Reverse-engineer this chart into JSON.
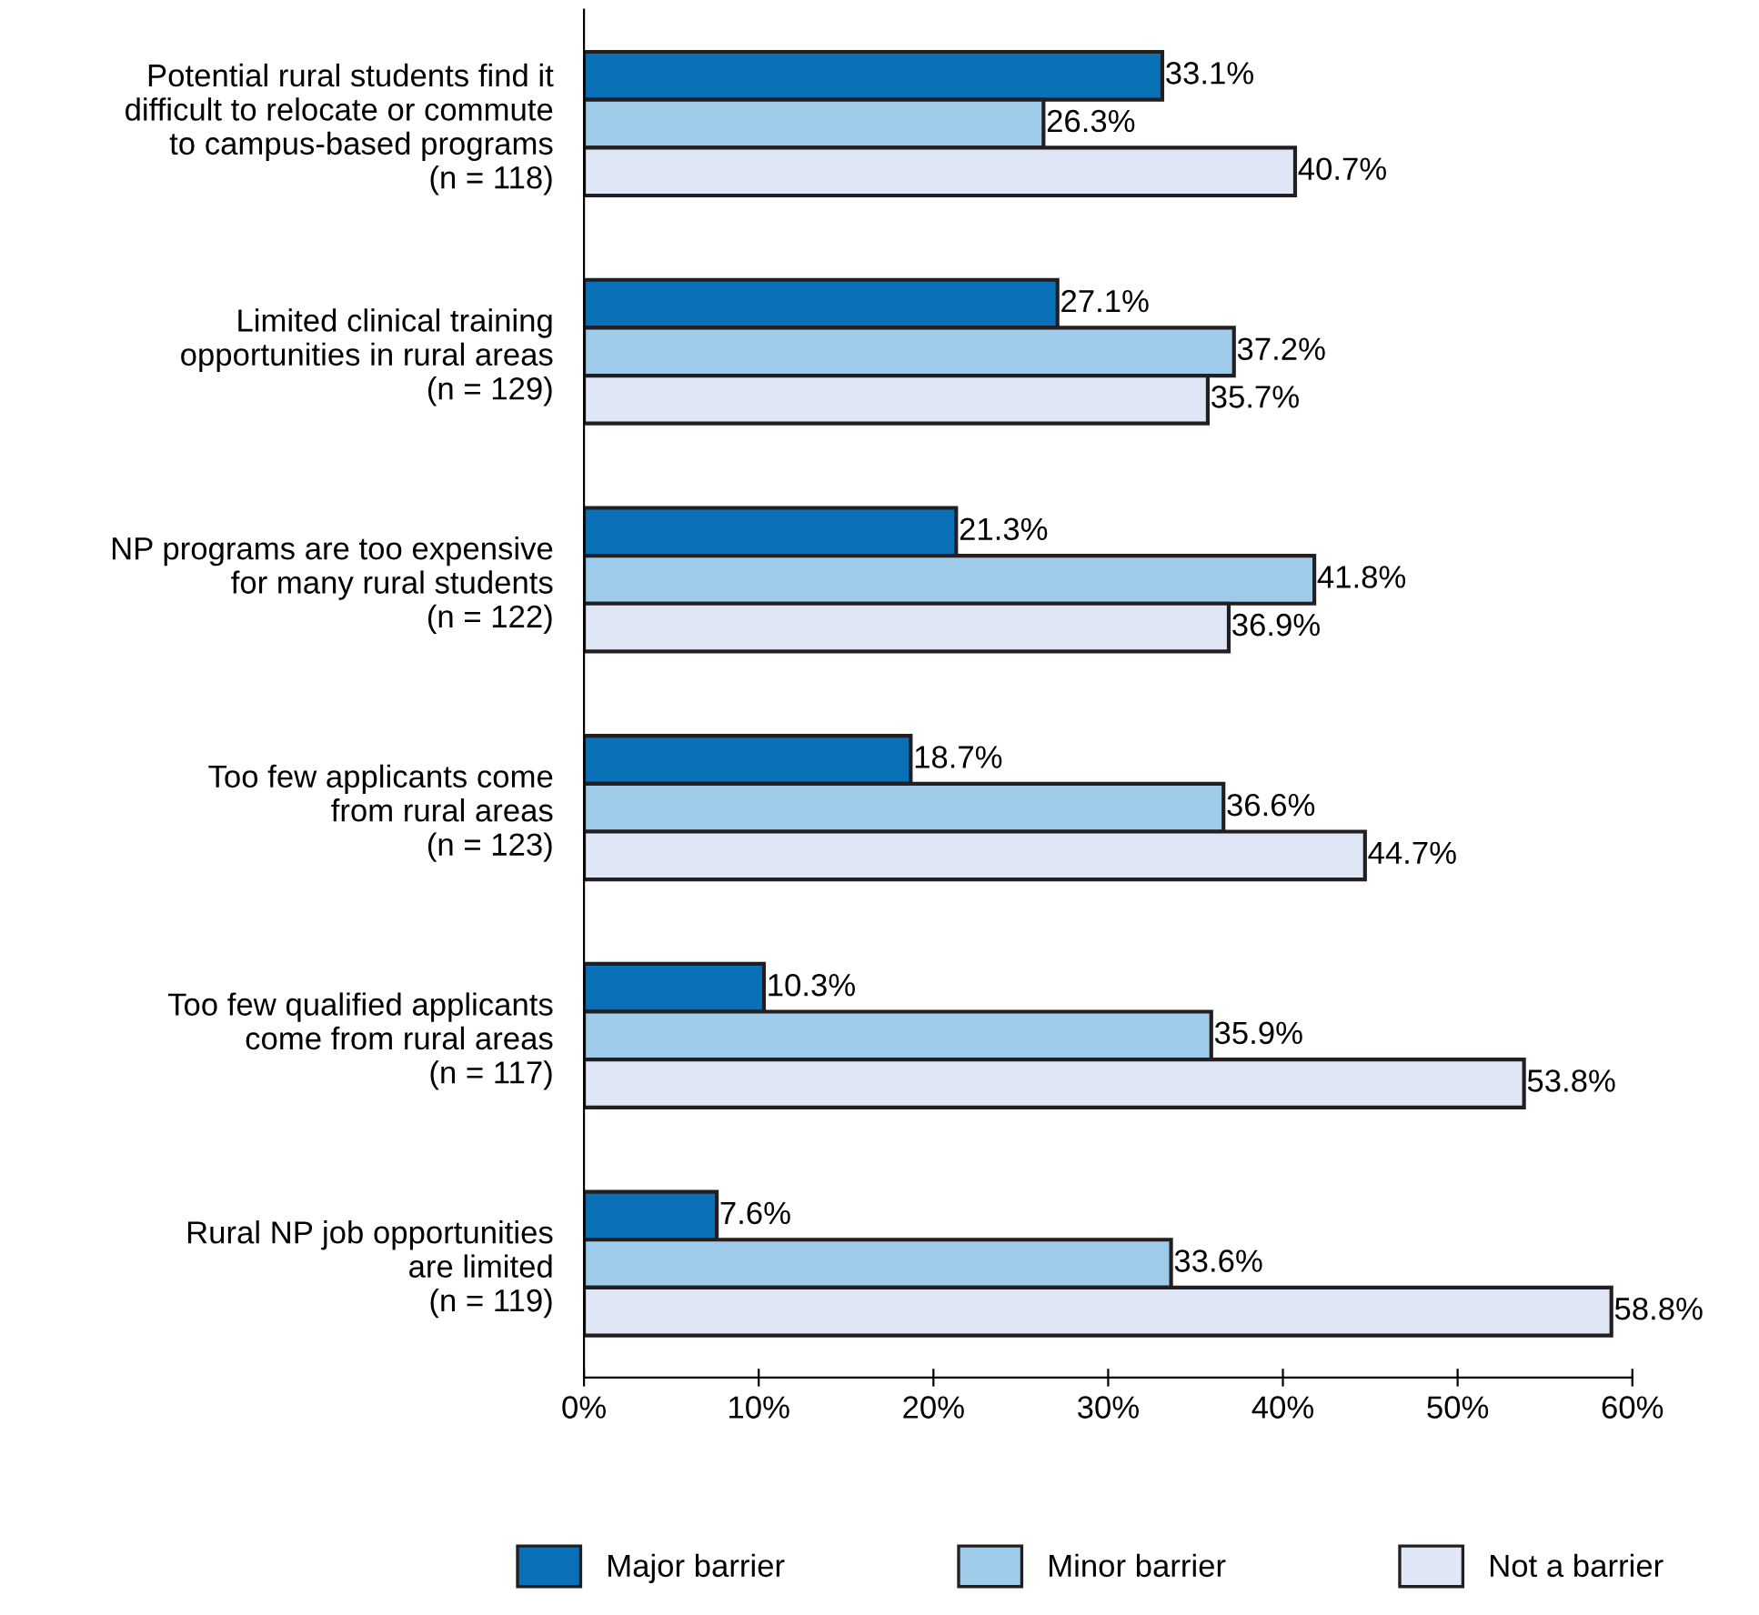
{
  "chart_data": {
    "type": "bar",
    "orientation": "horizontal",
    "categories": [
      "Potential rural students find it\ndifficult to relocate or commute\nto campus-based programs\n(n = 118)",
      "Limited clinical training\nopportunities in rural areas\n(n = 129)",
      "NP programs are too expensive\nfor many rural students\n(n = 122)",
      "Too few applicants come\nfrom rural areas\n(n = 123)",
      "Too few qualified applicants\ncome from rural areas\n(n = 117)",
      "Rural NP job opportunities\nare limited\n(n = 119)"
    ],
    "series": [
      {
        "name": "Major barrier",
        "color": "#0a71b9",
        "values": [
          33.1,
          27.1,
          21.3,
          18.7,
          10.3,
          7.6
        ],
        "value_labels": [
          "33.1%",
          "27.1%",
          "21.3%",
          "18.7%",
          "10.3%",
          "7.6%"
        ]
      },
      {
        "name": "Minor barrier",
        "color": "#9fcbeb",
        "values": [
          26.3,
          37.2,
          41.8,
          36.6,
          35.9,
          33.6
        ],
        "value_labels": [
          "26.3%",
          "37.2%",
          "41.8%",
          "36.6%",
          "35.9%",
          "33.6%"
        ]
      },
      {
        "name": "Not a barrier",
        "color": "#dfe6f5",
        "values": [
          40.7,
          35.7,
          36.9,
          44.7,
          53.8,
          58.8
        ],
        "value_labels": [
          "40.7%",
          "35.7%",
          "36.9%",
          "44.7%",
          "53.8%",
          "58.8%"
        ]
      }
    ],
    "xlim": [
      0,
      60
    ],
    "xticks": [
      {
        "value": 0,
        "label": "0%"
      },
      {
        "value": 10,
        "label": "10%"
      },
      {
        "value": 20,
        "label": "20%"
      },
      {
        "value": 30,
        "label": "30%"
      },
      {
        "value": 40,
        "label": "40%"
      },
      {
        "value": 50,
        "label": "50%"
      },
      {
        "value": 60,
        "label": "60%"
      }
    ],
    "grid": false,
    "legend": "bottom"
  }
}
